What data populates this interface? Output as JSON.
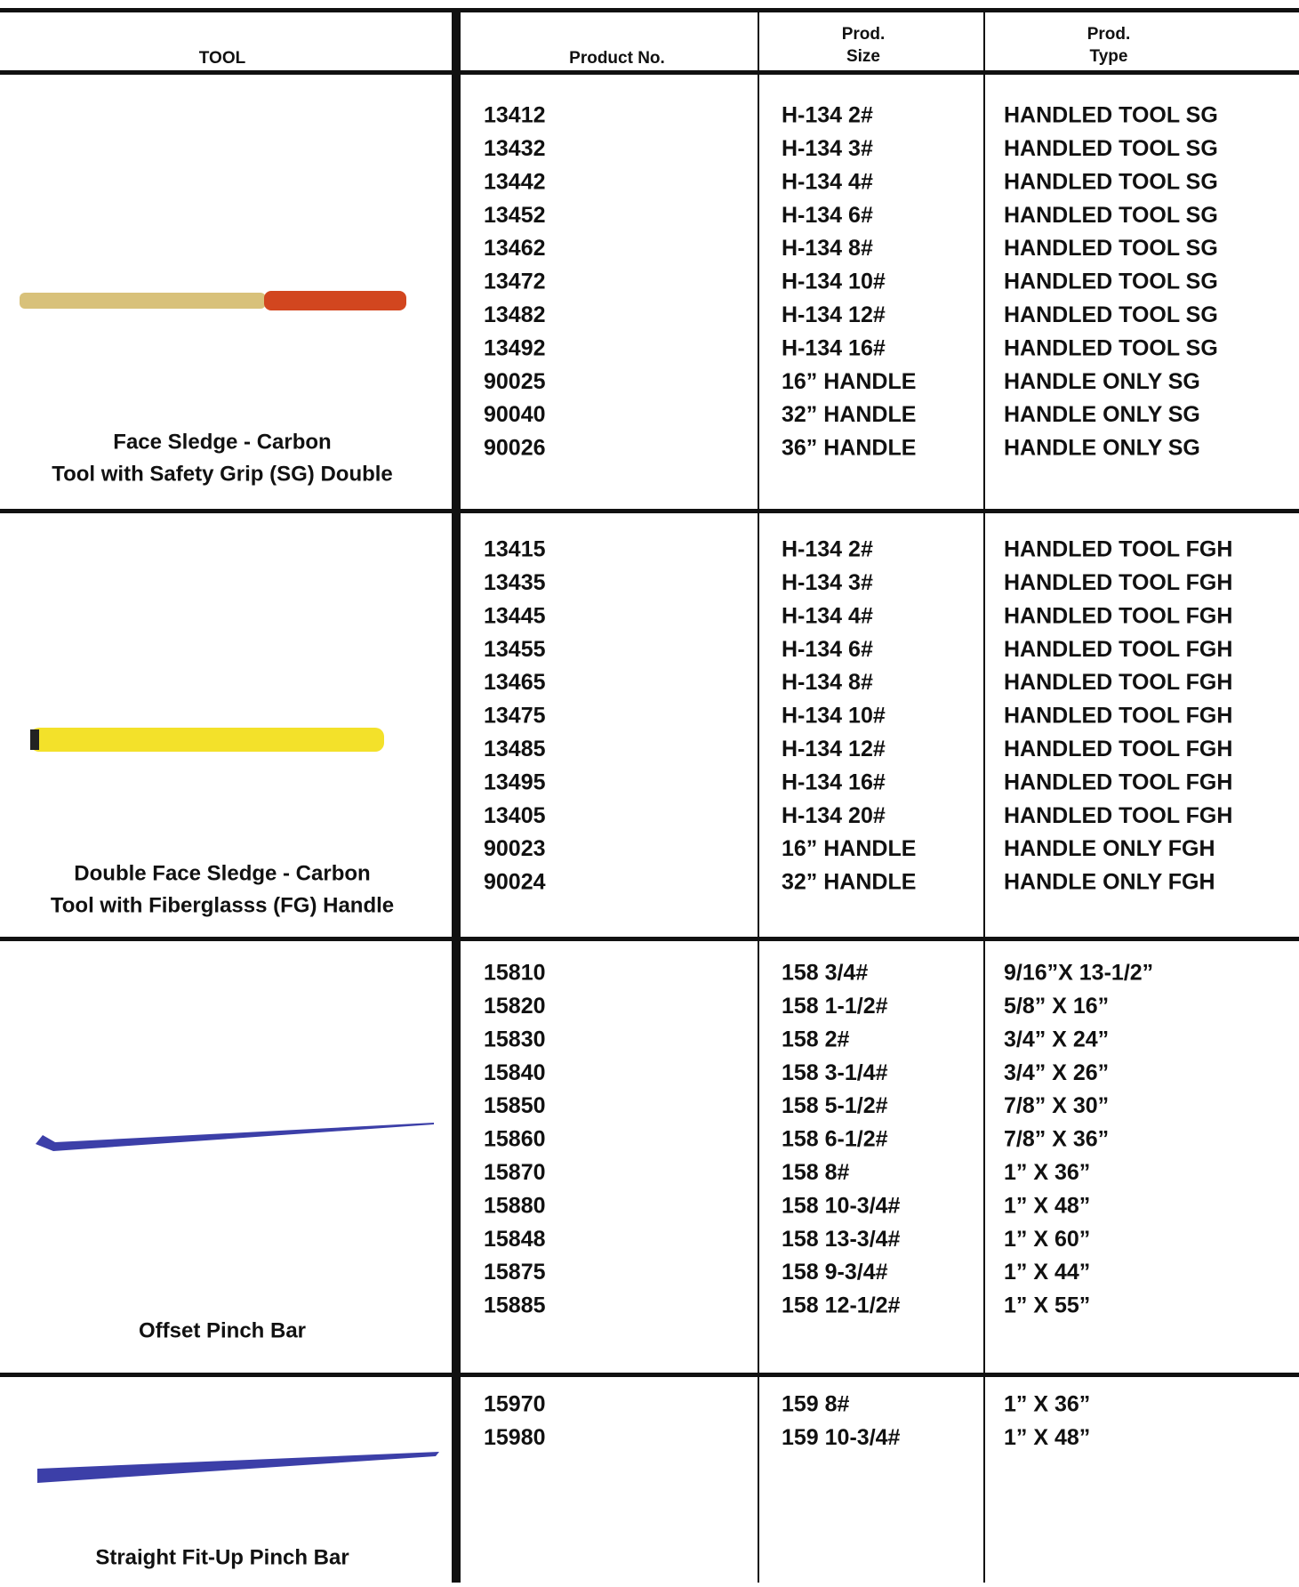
{
  "header": {
    "columns": [
      [
        "TOOL"
      ],
      [
        "Product No."
      ],
      [
        "Prod.",
        "Size"
      ],
      [
        "Prod.",
        "Type"
      ]
    ]
  },
  "sections": [
    {
      "tool": [
        "Face Sledge - Carbon",
        "Tool with Safety Grip (SG) Double"
      ],
      "rows": [
        [
          "13412",
          "H-134 2#",
          "HANDLED TOOL SG"
        ],
        [
          "13432",
          "H-134 3#",
          "HANDLED TOOL SG"
        ],
        [
          "13442",
          "H-134 4#",
          "HANDLED TOOL SG"
        ],
        [
          "13452",
          "H-134 6#",
          "HANDLED TOOL SG"
        ],
        [
          "13462",
          "H-134 8#",
          "HANDLED TOOL SG"
        ],
        [
          "13472",
          "H-134 10#",
          "HANDLED TOOL SG"
        ],
        [
          "13482",
          "H-134 12#",
          "HANDLED TOOL SG"
        ],
        [
          "13492",
          "H-134 16#",
          "HANDLED TOOL SG"
        ],
        [
          "90025",
          "16” HANDLE",
          "HANDLE ONLY SG"
        ],
        [
          "90040",
          "32” HANDLE",
          "HANDLE ONLY SG"
        ],
        [
          "90026",
          "36” HANDLE",
          "HANDLE ONLY SG"
        ]
      ]
    },
    {
      "tool": [
        "Double Face Sledge - Carbon",
        "Tool with Fiberglasss (FG) Handle"
      ],
      "rows": [
        [
          "13415",
          "H-134 2#",
          "HANDLED TOOL FGH"
        ],
        [
          "13435",
          "H-134 3#",
          "HANDLED TOOL FGH"
        ],
        [
          "13445",
          "H-134 4#",
          "HANDLED TOOL FGH"
        ],
        [
          "13455",
          "H-134 6#",
          "HANDLED TOOL FGH"
        ],
        [
          "13465",
          "H-134 8#",
          "HANDLED TOOL FGH"
        ],
        [
          "13475",
          "H-134 10#",
          "HANDLED TOOL FGH"
        ],
        [
          "13485",
          "H-134 12#",
          "HANDLED TOOL FGH"
        ],
        [
          "13495",
          "H-134 16#",
          "HANDLED TOOL FGH"
        ],
        [
          "13405",
          "H-134 20#",
          "HANDLED TOOL FGH"
        ],
        [
          "90023",
          "16” HANDLE",
          "HANDLE ONLY FGH"
        ],
        [
          "90024",
          "32” HANDLE",
          "HANDLE ONLY FGH"
        ]
      ]
    },
    {
      "tool": [
        "Offset Pinch Bar"
      ],
      "rows": [
        [
          "15810",
          "158 3/4#",
          "9/16”X 13-1/2”"
        ],
        [
          "15820",
          "158 1-1/2#",
          "5/8” X 16”"
        ],
        [
          "15830",
          "158 2#",
          "3/4” X 24”"
        ],
        [
          "15840",
          "158 3-1/4#",
          "3/4” X 26”"
        ],
        [
          "15850",
          "158 5-1/2#",
          "7/8” X 30”"
        ],
        [
          "15860",
          "158 6-1/2#",
          "7/8” X 36”"
        ],
        [
          "15870",
          "158 8#",
          "1” X 36”"
        ],
        [
          "15880",
          "158 10-3/4#",
          "1” X 48”"
        ],
        [
          "15848",
          "158 13-3/4#",
          "1” X 60”"
        ],
        [
          "15875",
          "158 9-3/4#",
          "1” X 44”"
        ],
        [
          "15885",
          "158 12-1/2#",
          "1” X 55”"
        ]
      ]
    },
    {
      "tool": [
        "Straight Fit-Up Pinch Bar"
      ],
      "rows": [
        [
          "15970",
          "159 8#",
          "1” X 36”"
        ],
        [
          "15980",
          "159 10-3/4#",
          "1” X 48”"
        ]
      ]
    }
  ]
}
